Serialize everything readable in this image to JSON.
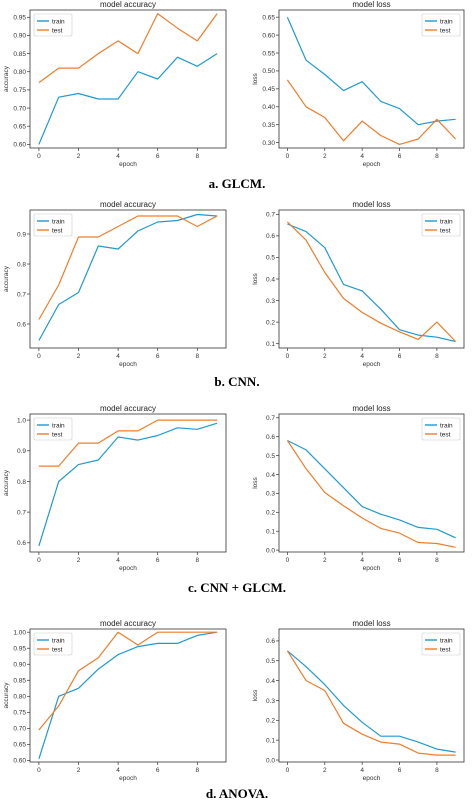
{
  "colors": {
    "train": "#1f9ad1",
    "test": "#f07d2a"
  },
  "captions": [
    "a. GLCM.",
    "b. CNN.",
    "c. CNN + GLCM.",
    "d. ANOVA."
  ],
  "chart_data": [
    {
      "type": "line",
      "title": "model accuracy",
      "xlabel": "epoch",
      "ylabel": "accuracy",
      "x": [
        0,
        1,
        2,
        3,
        4,
        5,
        6,
        7,
        8,
        9
      ],
      "xticks": [
        0,
        2,
        4,
        6,
        8
      ],
      "xlim": [
        -0.45,
        9.45
      ],
      "ylim": [
        0.59,
        0.97
      ],
      "yticks": [
        0.6,
        0.65,
        0.7,
        0.75,
        0.8,
        0.85,
        0.9,
        0.95
      ],
      "ytick_labels": [
        "0.60",
        "0.65",
        "0.70",
        "0.75",
        "0.80",
        "0.85",
        "0.90",
        "0.95"
      ],
      "legend": "upper left",
      "series": [
        {
          "name": "train",
          "values": [
            0.6,
            0.73,
            0.74,
            0.725,
            0.725,
            0.8,
            0.78,
            0.84,
            0.815,
            0.85
          ]
        },
        {
          "name": "test",
          "values": [
            0.77,
            0.81,
            0.81,
            0.85,
            0.885,
            0.85,
            0.96,
            0.92,
            0.885,
            0.96
          ]
        }
      ]
    },
    {
      "type": "line",
      "title": "model loss",
      "xlabel": "epoch",
      "ylabel": "loss",
      "x": [
        0,
        1,
        2,
        3,
        4,
        5,
        6,
        7,
        8,
        9
      ],
      "xticks": [
        0,
        2,
        4,
        6,
        8
      ],
      "xlim": [
        -0.45,
        9.45
      ],
      "ylim": [
        0.285,
        0.67
      ],
      "yticks": [
        0.3,
        0.35,
        0.4,
        0.45,
        0.5,
        0.55,
        0.6,
        0.65
      ],
      "ytick_labels": [
        "0.30",
        "0.35",
        "0.40",
        "0.45",
        "0.50",
        "0.55",
        "0.60",
        "0.65"
      ],
      "legend": "upper right",
      "series": [
        {
          "name": "train",
          "values": [
            0.65,
            0.53,
            0.49,
            0.445,
            0.47,
            0.415,
            0.395,
            0.35,
            0.36,
            0.365
          ]
        },
        {
          "name": "test",
          "values": [
            0.475,
            0.4,
            0.37,
            0.305,
            0.36,
            0.32,
            0.295,
            0.31,
            0.365,
            0.31
          ]
        }
      ]
    },
    {
      "type": "line",
      "title": "model accuracy",
      "xlabel": "epoch",
      "ylabel": "accuracy",
      "x": [
        0,
        1,
        2,
        3,
        4,
        5,
        6,
        7,
        8,
        9
      ],
      "xticks": [
        0,
        2,
        4,
        6,
        8
      ],
      "xlim": [
        -0.45,
        9.45
      ],
      "ylim": [
        0.52,
        0.98
      ],
      "yticks": [
        0.6,
        0.7,
        0.8,
        0.9
      ],
      "ytick_labels": [
        "0.6",
        "0.7",
        "0.8",
        "0.9"
      ],
      "legend": "upper left",
      "series": [
        {
          "name": "train",
          "values": [
            0.545,
            0.665,
            0.705,
            0.86,
            0.85,
            0.91,
            0.94,
            0.945,
            0.965,
            0.96
          ]
        },
        {
          "name": "test",
          "values": [
            0.615,
            0.73,
            0.89,
            0.89,
            0.925,
            0.96,
            0.96,
            0.96,
            0.925,
            0.96
          ]
        }
      ]
    },
    {
      "type": "line",
      "title": "model loss",
      "xlabel": "epoch",
      "ylabel": "loss",
      "x": [
        0,
        1,
        2,
        3,
        4,
        5,
        6,
        7,
        8,
        9
      ],
      "xticks": [
        0,
        2,
        4,
        6,
        8
      ],
      "xlim": [
        -0.45,
        9.45
      ],
      "ylim": [
        0.08,
        0.72
      ],
      "yticks": [
        0.1,
        0.2,
        0.3,
        0.4,
        0.5,
        0.6,
        0.7
      ],
      "ytick_labels": [
        "0.1",
        "0.2",
        "0.3",
        "0.4",
        "0.5",
        "0.6",
        "0.7"
      ],
      "legend": "upper right",
      "series": [
        {
          "name": "train",
          "values": [
            0.655,
            0.62,
            0.545,
            0.375,
            0.345,
            0.26,
            0.165,
            0.14,
            0.13,
            0.11
          ]
        },
        {
          "name": "test",
          "values": [
            0.665,
            0.58,
            0.43,
            0.31,
            0.245,
            0.195,
            0.155,
            0.12,
            0.2,
            0.11
          ]
        }
      ]
    },
    {
      "type": "line",
      "title": "model accuracy",
      "xlabel": "epoch",
      "ylabel": "accuracy",
      "x": [
        0,
        1,
        2,
        3,
        4,
        5,
        6,
        7,
        8,
        9
      ],
      "xticks": [
        0,
        2,
        4,
        6,
        8
      ],
      "xlim": [
        -0.45,
        9.45
      ],
      "ylim": [
        0.57,
        1.02
      ],
      "yticks": [
        0.6,
        0.7,
        0.8,
        0.9,
        1.0
      ],
      "ytick_labels": [
        "0.6",
        "0.7",
        "0.8",
        "0.9",
        "1.0"
      ],
      "legend": "upper left",
      "series": [
        {
          "name": "train",
          "values": [
            0.59,
            0.8,
            0.855,
            0.87,
            0.945,
            0.935,
            0.95,
            0.975,
            0.97,
            0.99
          ]
        },
        {
          "name": "test",
          "values": [
            0.85,
            0.85,
            0.925,
            0.925,
            0.965,
            0.965,
            1.0,
            1.0,
            1.0,
            1.0
          ]
        }
      ]
    },
    {
      "type": "line",
      "title": "model loss",
      "xlabel": "epoch",
      "ylabel": "loss",
      "x": [
        0,
        1,
        2,
        3,
        4,
        5,
        6,
        7,
        8,
        9
      ],
      "xticks": [
        0,
        2,
        4,
        6,
        8
      ],
      "xlim": [
        -0.45,
        9.45
      ],
      "ylim": [
        -0.01,
        0.72
      ],
      "yticks": [
        0.0,
        0.1,
        0.2,
        0.3,
        0.4,
        0.5,
        0.6,
        0.7
      ],
      "ytick_labels": [
        "0.0",
        "0.1",
        "0.2",
        "0.3",
        "0.4",
        "0.5",
        "0.6",
        "0.7"
      ],
      "legend": "upper right",
      "series": [
        {
          "name": "train",
          "values": [
            0.58,
            0.53,
            0.43,
            0.33,
            0.23,
            0.19,
            0.16,
            0.12,
            0.11,
            0.065
          ]
        },
        {
          "name": "test",
          "values": [
            0.58,
            0.43,
            0.305,
            0.235,
            0.17,
            0.115,
            0.09,
            0.04,
            0.035,
            0.015
          ]
        }
      ]
    },
    {
      "type": "line",
      "title": "model accuracy",
      "xlabel": "epoch",
      "ylabel": "accuracy",
      "x": [
        0,
        1,
        2,
        3,
        4,
        5,
        6,
        7,
        8,
        9
      ],
      "xticks": [
        0,
        2,
        4,
        6,
        8
      ],
      "xlim": [
        -0.45,
        9.45
      ],
      "ylim": [
        0.595,
        1.01
      ],
      "yticks": [
        0.6,
        0.65,
        0.7,
        0.75,
        0.8,
        0.85,
        0.9,
        0.95,
        1.0
      ],
      "ytick_labels": [
        "0.60",
        "0.65",
        "0.70",
        "0.75",
        "0.80",
        "0.85",
        "0.90",
        "0.95",
        "1.00"
      ],
      "legend": "upper left",
      "series": [
        {
          "name": "train",
          "values": [
            0.605,
            0.8,
            0.825,
            0.885,
            0.93,
            0.955,
            0.965,
            0.965,
            0.99,
            1.0
          ]
        },
        {
          "name": "test",
          "values": [
            0.695,
            0.77,
            0.88,
            0.92,
            1.0,
            0.96,
            1.0,
            1.0,
            1.0,
            1.0
          ]
        }
      ]
    },
    {
      "type": "line",
      "title": "model loss",
      "xlabel": "epoch",
      "ylabel": "loss",
      "x": [
        0,
        1,
        2,
        3,
        4,
        5,
        6,
        7,
        8,
        9
      ],
      "xticks": [
        0,
        2,
        4,
        6,
        8
      ],
      "xlim": [
        -0.45,
        9.45
      ],
      "ylim": [
        -0.01,
        0.66
      ],
      "yticks": [
        0.0,
        0.1,
        0.2,
        0.3,
        0.4,
        0.5,
        0.6
      ],
      "ytick_labels": [
        "0.0",
        "0.1",
        "0.2",
        "0.3",
        "0.4",
        "0.5",
        "0.6"
      ],
      "legend": "upper right",
      "series": [
        {
          "name": "train",
          "values": [
            0.55,
            0.47,
            0.38,
            0.275,
            0.19,
            0.12,
            0.12,
            0.09,
            0.055,
            0.04
          ]
        },
        {
          "name": "test",
          "values": [
            0.55,
            0.4,
            0.35,
            0.185,
            0.13,
            0.09,
            0.08,
            0.035,
            0.025,
            0.025
          ]
        }
      ]
    }
  ]
}
